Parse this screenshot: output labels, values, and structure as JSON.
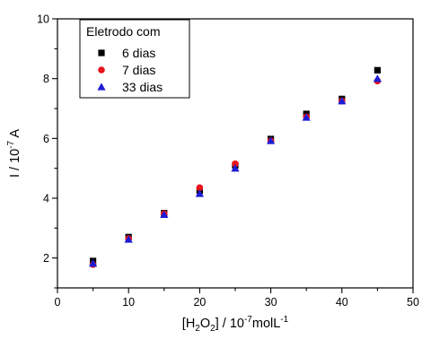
{
  "chart_data": {
    "type": "scatter",
    "x_axis_label": {
      "parts": [
        {
          "text": "[H",
          "shift": 0
        },
        {
          "text": "2",
          "shift": 4
        },
        {
          "text": "O",
          "shift": 0
        },
        {
          "text": "2",
          "shift": 4
        },
        {
          "text": "] / 10",
          "shift": 0
        },
        {
          "text": "-7",
          "shift": -6
        },
        {
          "text": "molL",
          "shift": 0
        },
        {
          "text": "-1",
          "shift": -6
        }
      ]
    },
    "y_axis_label": {
      "parts": [
        {
          "text": "I / 10",
          "shift": 0
        },
        {
          "text": "-7",
          "shift": -6
        },
        {
          "text": " A",
          "shift": 0
        }
      ]
    },
    "xlim": [
      0,
      50
    ],
    "ylim": [
      1,
      10
    ],
    "x_ticks": [
      0,
      10,
      20,
      30,
      40,
      50
    ],
    "y_ticks": [
      2,
      4,
      6,
      8,
      10
    ],
    "x_minor_step": 5,
    "y_minor_step": 1,
    "legend_title": "Eletrodo com",
    "legend_position": "top-left",
    "grid": false,
    "series": [
      {
        "name": "6 dias",
        "marker": "square",
        "color": "#000000",
        "x": [
          5,
          10,
          15,
          20,
          25,
          30,
          35,
          40,
          45
        ],
        "y": [
          1.9,
          2.7,
          3.5,
          4.25,
          5.1,
          5.98,
          6.82,
          7.32,
          8.28
        ]
      },
      {
        "name": "7 dias",
        "marker": "circle",
        "color": "#e8141c",
        "x": [
          5,
          10,
          15,
          20,
          25,
          30,
          35,
          40,
          45
        ],
        "y": [
          1.78,
          2.65,
          3.48,
          4.35,
          5.15,
          5.92,
          6.72,
          7.25,
          7.92
        ]
      },
      {
        "name": "33 dias",
        "marker": "triangle",
        "color": "#1c1cd6",
        "x": [
          5,
          10,
          15,
          20,
          25,
          30,
          35,
          40,
          45
        ],
        "y": [
          1.82,
          2.62,
          3.45,
          4.15,
          5.0,
          5.92,
          6.7,
          7.25,
          8.0
        ]
      }
    ]
  }
}
